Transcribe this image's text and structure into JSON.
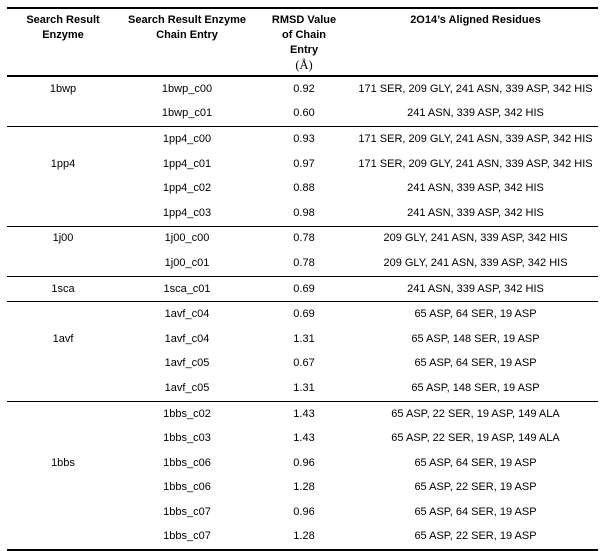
{
  "table": {
    "headers": {
      "col1_line1": "Search Result",
      "col1_line2": "Enzyme",
      "col2_line1": "Search Result Enzyme",
      "col2_line2": "Chain Entry",
      "col3_line1": "RMSD Value",
      "col3_line2": "of Chain",
      "col3_line3": "Entry",
      "col3_unit": "(Å)",
      "col4_line1": "2O14’s Aligned Residues"
    },
    "groups": [
      {
        "enzyme": "1bwp",
        "rows": [
          {
            "chain": "1bwp_c00",
            "rmsd": "0.92",
            "residues": "171 SER, 209 GLY, 241 ASN, 339 ASP, 342 HIS"
          },
          {
            "chain": "1bwp_c01",
            "rmsd": "0.60",
            "residues": "241 ASN, 339 ASP, 342 HIS"
          }
        ]
      },
      {
        "enzyme": "1pp4",
        "rows": [
          {
            "chain": "1pp4_c00",
            "rmsd": "0.93",
            "residues": "171 SER, 209 GLY, 241 ASN, 339 ASP, 342 HIS"
          },
          {
            "chain": "1pp4_c01",
            "rmsd": "0.97",
            "residues": "171 SER, 209 GLY, 241 ASN, 339 ASP, 342 HIS"
          },
          {
            "chain": "1pp4_c02",
            "rmsd": "0.88",
            "residues": "241 ASN, 339 ASP, 342 HIS"
          },
          {
            "chain": "1pp4_c03",
            "rmsd": "0.98",
            "residues": "241 ASN, 339 ASP, 342 HIS"
          }
        ]
      },
      {
        "enzyme": "1j00",
        "rows": [
          {
            "chain": "1j00_c00",
            "rmsd": "0.78",
            "residues": "209 GLY, 241 ASN, 339 ASP, 342 HIS"
          },
          {
            "chain": "1j00_c01",
            "rmsd": "0.78",
            "residues": "209 GLY, 241 ASN, 339 ASP, 342 HIS"
          }
        ]
      },
      {
        "enzyme": "1sca",
        "rows": [
          {
            "chain": "1sca_c01",
            "rmsd": "0.69",
            "residues": "241 ASN, 339 ASP, 342 HIS"
          }
        ]
      },
      {
        "enzyme": "1avf",
        "rows": [
          {
            "chain": "1avf_c04",
            "rmsd": "0.69",
            "residues": "65 ASP, 64 SER, 19 ASP"
          },
          {
            "chain": "1avf_c04",
            "rmsd": "1.31",
            "residues": "65 ASP, 148 SER, 19 ASP"
          },
          {
            "chain": "1avf_c05",
            "rmsd": "0.67",
            "residues": "65 ASP, 64 SER, 19 ASP"
          },
          {
            "chain": "1avf_c05",
            "rmsd": "1.31",
            "residues": "65 ASP, 148 SER, 19 ASP"
          }
        ]
      },
      {
        "enzyme": "1bbs",
        "rows": [
          {
            "chain": "1bbs_c02",
            "rmsd": "1.43",
            "residues": "65 ASP, 22 SER, 19 ASP, 149 ALA"
          },
          {
            "chain": "1bbs_c03",
            "rmsd": "1.43",
            "residues": "65 ASP, 22 SER, 19 ASP, 149 ALA"
          },
          {
            "chain": "1bbs_c06",
            "rmsd": "0.96",
            "residues": "65 ASP, 64 SER, 19 ASP"
          },
          {
            "chain": "1bbs_c06",
            "rmsd": "1.28",
            "residues": "65 ASP, 22 SER, 19 ASP"
          },
          {
            "chain": "1bbs_c07",
            "rmsd": "0.96",
            "residues": "65 ASP, 64 SER, 19 ASP"
          },
          {
            "chain": "1bbs_c07",
            "rmsd": "1.28",
            "residues": "65 ASP, 22 SER, 19 ASP"
          }
        ]
      }
    ]
  }
}
